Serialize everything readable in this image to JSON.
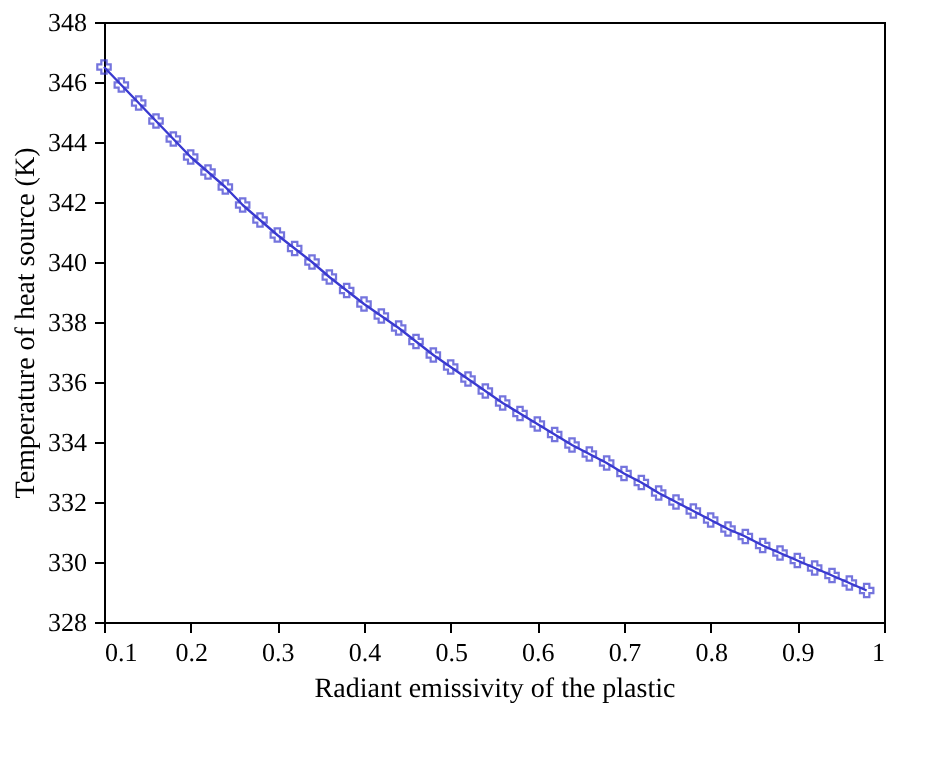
{
  "chart_data": {
    "type": "line",
    "xlabel": "Radiant emissivity of the plastic",
    "ylabel": "Temperature of heat source (K)",
    "x": [
      0.1,
      0.12,
      0.14,
      0.16,
      0.18,
      0.2,
      0.22,
      0.24,
      0.26,
      0.28,
      0.3,
      0.32,
      0.34,
      0.36,
      0.38,
      0.4,
      0.42,
      0.44,
      0.46,
      0.48,
      0.5,
      0.52,
      0.54,
      0.56,
      0.58,
      0.6,
      0.62,
      0.64,
      0.66,
      0.68,
      0.7,
      0.72,
      0.74,
      0.76,
      0.78,
      0.8,
      0.82,
      0.84,
      0.86,
      0.88,
      0.9,
      0.92,
      0.94,
      0.96,
      0.98
    ],
    "series": [
      {
        "color": "#3a3ad0",
        "values": [
          346.5,
          345.9,
          345.3,
          344.7,
          344.1,
          343.5,
          343.0,
          342.5,
          341.9,
          341.4,
          340.9,
          340.45,
          340.0,
          339.5,
          339.05,
          338.6,
          338.2,
          337.8,
          337.35,
          336.9,
          336.5,
          336.1,
          335.7,
          335.3,
          334.95,
          334.6,
          334.25,
          333.9,
          333.6,
          333.3,
          332.95,
          332.65,
          332.3,
          332.0,
          331.7,
          331.4,
          331.1,
          330.85,
          330.55,
          330.3,
          330.05,
          329.8,
          329.55,
          329.3,
          329.05
        ]
      }
    ],
    "xlim": [
      0.1,
      1
    ],
    "xticks": [
      0.1,
      0.2,
      0.3,
      0.4,
      0.5,
      0.6,
      0.7,
      0.8,
      0.9,
      1
    ],
    "ylim": [
      328,
      348
    ],
    "yticks": [
      328,
      330,
      332,
      334,
      336,
      338,
      340,
      342,
      344,
      346,
      348
    ],
    "grid": false,
    "marker": "cross",
    "line_style": "solid"
  }
}
